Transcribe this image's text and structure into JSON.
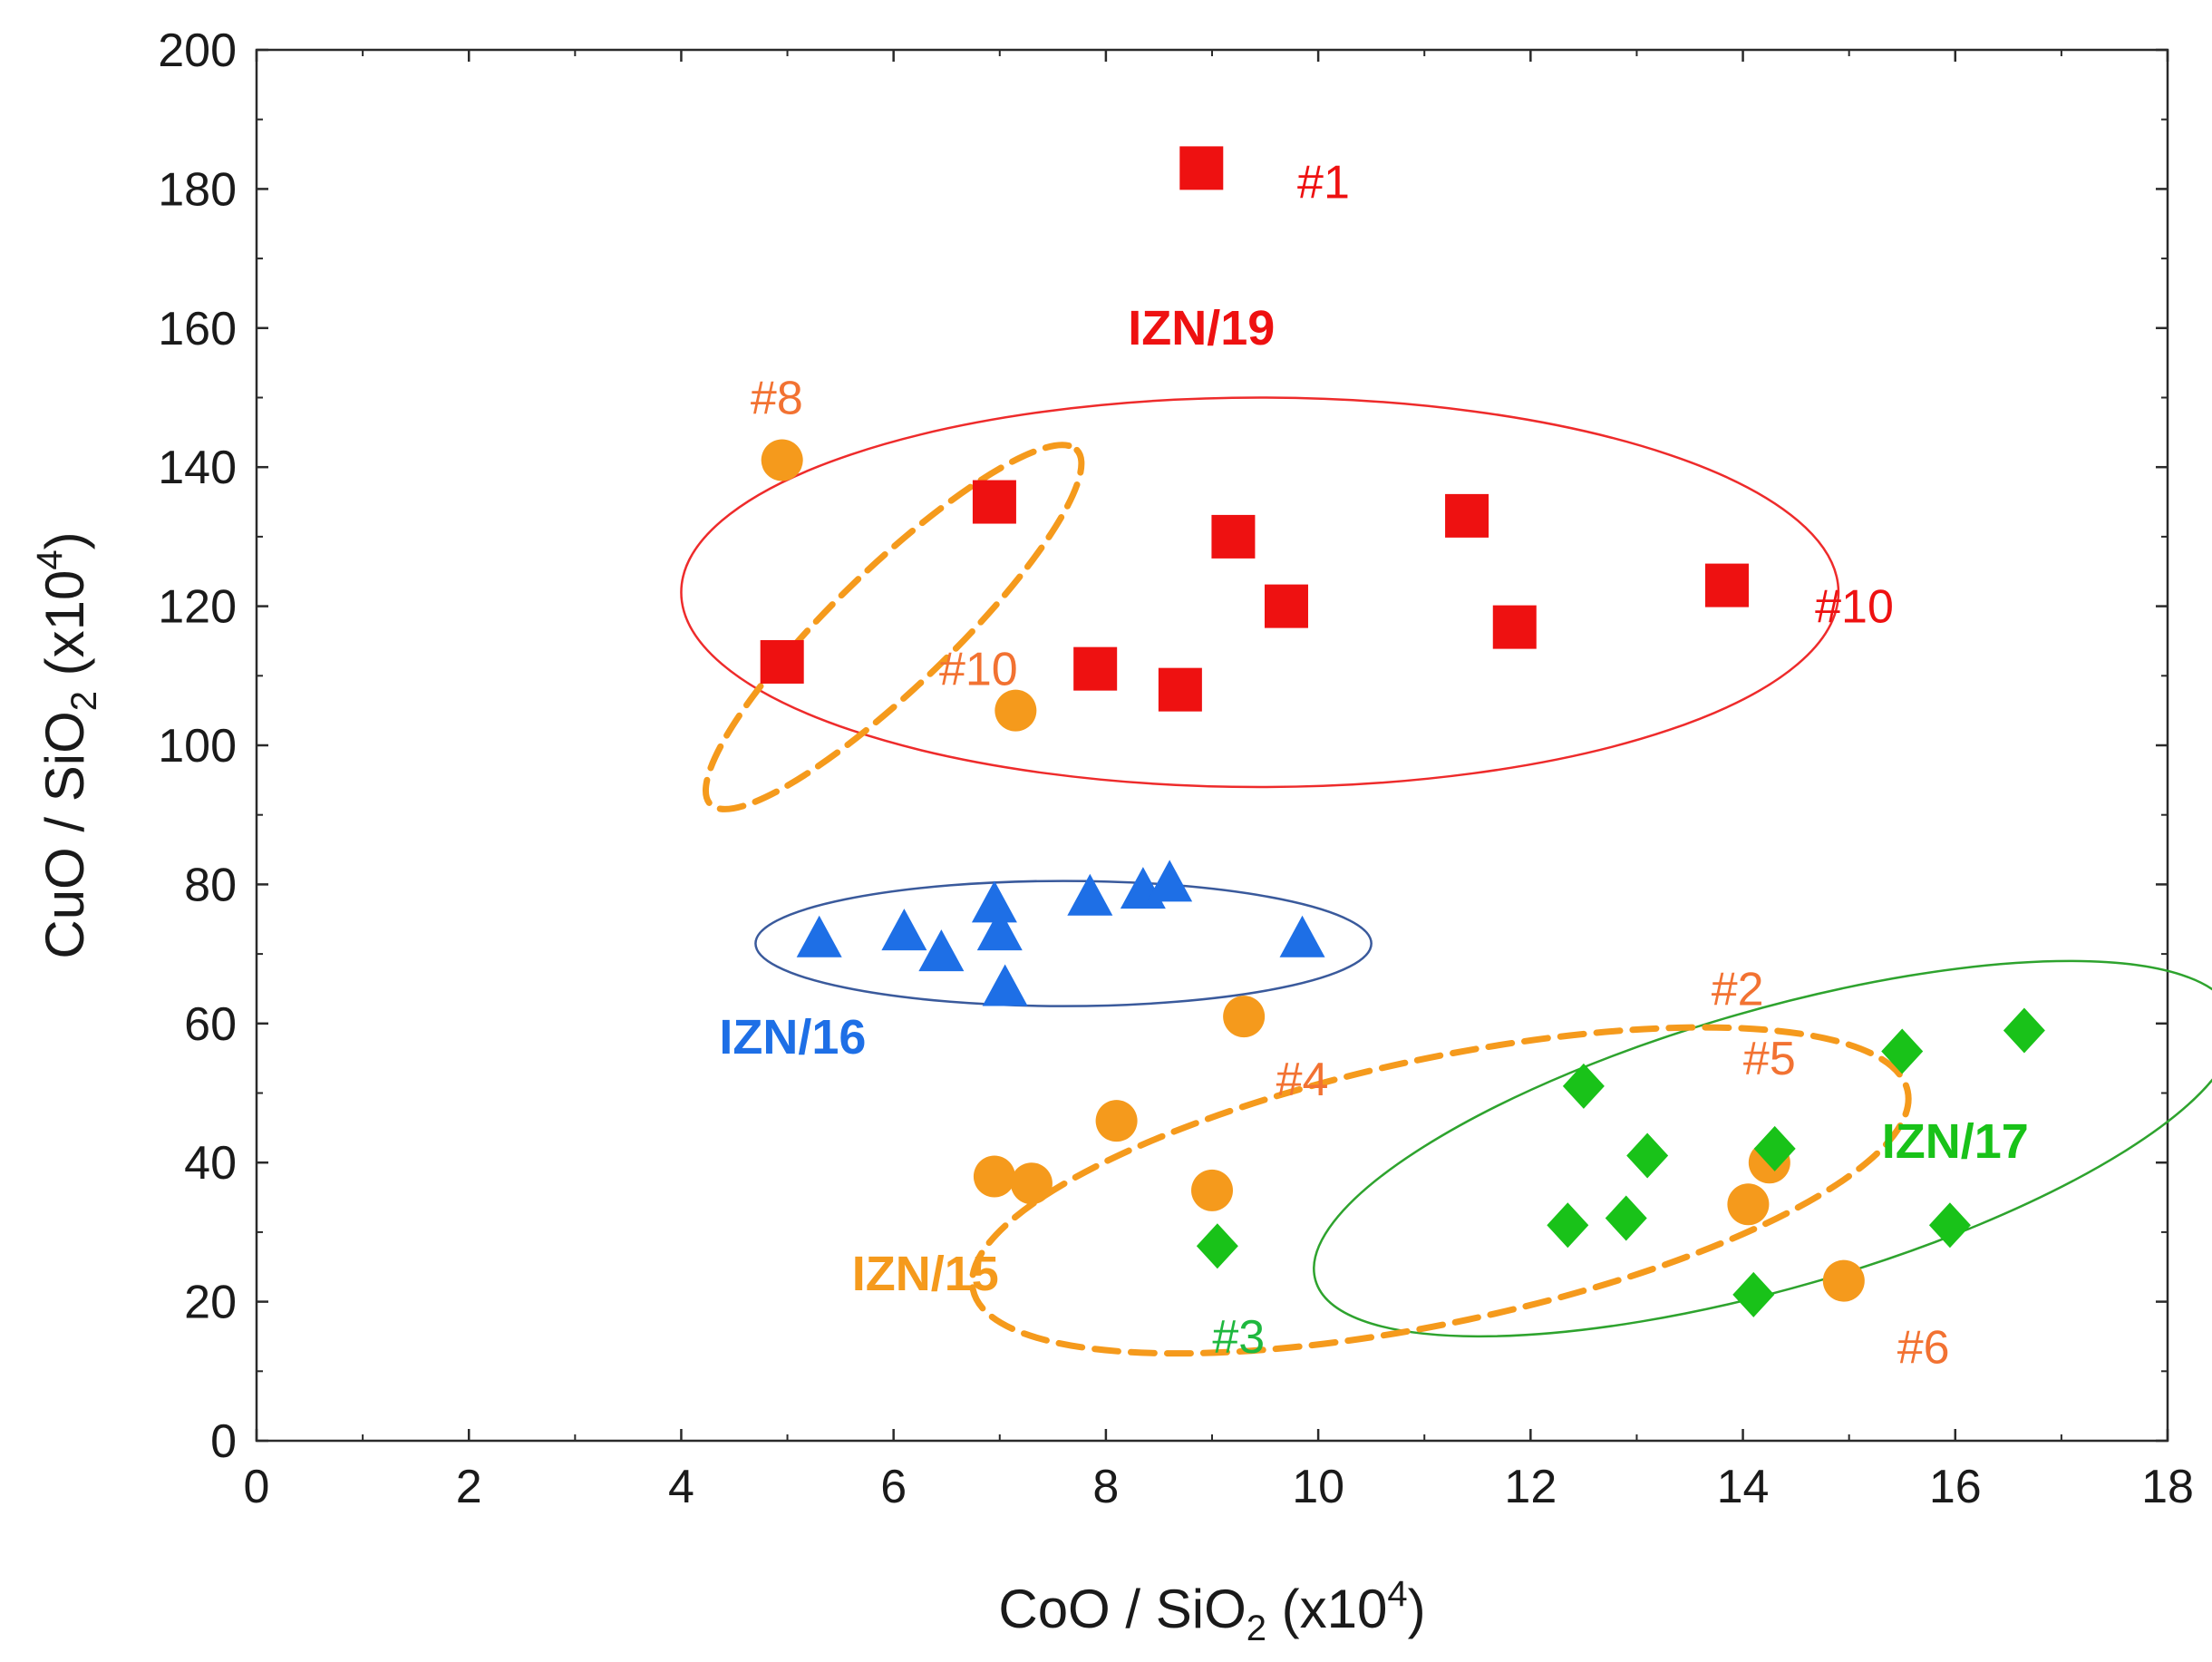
{
  "chart_data": {
    "type": "scatter",
    "xlabel": {
      "main": "CoO / SiO",
      "sub": "2",
      "pre_sup": " (x10",
      "sup": "4",
      "post": ")"
    },
    "ylabel": {
      "main": "CuO / SiO",
      "sub": "2",
      "pre_sup": " (x10",
      "sup": "4",
      "post": ")"
    },
    "xlim": [
      0,
      18
    ],
    "ylim": [
      0,
      200
    ],
    "xticks": [
      0,
      2,
      4,
      6,
      8,
      10,
      12,
      14,
      16,
      18
    ],
    "yticks": [
      0,
      20,
      40,
      60,
      80,
      100,
      120,
      140,
      160,
      180,
      200
    ],
    "grid": false,
    "series": [
      {
        "name": "IZN/19",
        "marker": "square",
        "color": "#ee1111",
        "x": [
          8.9,
          4.95,
          6.95,
          7.9,
          8.7,
          9.2,
          9.7,
          11.4,
          11.85,
          13.85
        ],
        "y": [
          183,
          112,
          135,
          111,
          108,
          130,
          120,
          133,
          117,
          123
        ]
      },
      {
        "name": "IZN/16",
        "marker": "triangle",
        "color": "#1e6fe6",
        "x": [
          5.3,
          6.1,
          6.45,
          6.95,
          7.0,
          7.05,
          7.85,
          8.35,
          8.6,
          9.85
        ],
        "y": [
          72,
          73,
          70,
          77,
          73,
          65,
          78,
          79,
          80,
          72
        ]
      },
      {
        "name": "IZN/15",
        "marker": "circle",
        "color": "#f59a1c",
        "x": [
          4.95,
          7.15,
          9.3,
          8.1,
          6.95,
          7.3,
          9.0,
          14.05,
          14.25,
          14.95
        ],
        "y": [
          141,
          105,
          61,
          46,
          38,
          37,
          36,
          34,
          40,
          23
        ]
      },
      {
        "name": "IZN/17",
        "marker": "diamond",
        "color": "#19c219",
        "x": [
          9.05,
          12.5,
          13.1,
          14.3,
          12.35,
          12.9,
          14.1,
          15.5,
          15.95,
          16.65
        ],
        "y": [
          28,
          51,
          41,
          42,
          31,
          32,
          21,
          56,
          31,
          59
        ]
      }
    ],
    "ellipses": [
      {
        "group": "IZN/19",
        "color": "#ee2b2b",
        "dashed": false,
        "cx": 9.45,
        "cy": 122,
        "rx": 5.45,
        "ry": 28,
        "angle": 0
      },
      {
        "group": "IZN/16",
        "color": "#3a5a9c",
        "dashed": false,
        "cx": 7.6,
        "cy": 71.5,
        "rx": 2.9,
        "ry": 9,
        "angle": 0
      },
      {
        "group": "IZN/17",
        "color": "#2ea32e",
        "dashed": false,
        "cx": 14.3,
        "cy": 42,
        "rx": 4.5,
        "ry": 20,
        "angle": 16
      },
      {
        "group": "IZN/15",
        "color": "#f59a1c",
        "dashed": true,
        "cx": 11.15,
        "cy": 36,
        "rx": 4.5,
        "ry": 19,
        "angle": 12
      },
      {
        "group": "IZN/15",
        "color": "#f59a1c",
        "dashed": true,
        "cx": 6.0,
        "cy": 117,
        "rx": 2.4,
        "ry": 8.5,
        "angle": 44
      }
    ],
    "annotations": [
      {
        "text": "IZN/19",
        "x": 8.9,
        "y": 160,
        "color": "#ee1111",
        "bold": true
      },
      {
        "text": "IZN/16",
        "x": 5.05,
        "y": 58,
        "color": "#1e6fe6",
        "bold": true
      },
      {
        "text": "IZN/15",
        "x": 6.3,
        "y": 24,
        "color": "#f59a1c",
        "bold": true
      },
      {
        "text": "IZN/17",
        "x": 16.0,
        "y": 43,
        "color": "#19c219",
        "bold": true
      },
      {
        "text": "#1",
        "x": 10.05,
        "y": 181,
        "color": "#ee1111",
        "bold": false
      },
      {
        "text": "#10",
        "x": 15.05,
        "y": 120,
        "color": "#ee1111",
        "bold": false
      },
      {
        "text": "#8",
        "x": 4.9,
        "y": 150,
        "color": "#f27232",
        "bold": false
      },
      {
        "text": "#10",
        "x": 6.8,
        "y": 111,
        "color": "#f27232",
        "bold": false
      },
      {
        "text": "#4",
        "x": 9.85,
        "y": 52,
        "color": "#f27232",
        "bold": false
      },
      {
        "text": "#2",
        "x": 13.95,
        "y": 65,
        "color": "#f27232",
        "bold": false
      },
      {
        "text": "#5",
        "x": 14.25,
        "y": 55,
        "color": "#f27232",
        "bold": false
      },
      {
        "text": "#6",
        "x": 15.7,
        "y": 13.5,
        "color": "#f27232",
        "bold": false
      },
      {
        "text": "#3",
        "x": 9.25,
        "y": 15,
        "color": "#1fb83f",
        "bold": false
      }
    ]
  }
}
